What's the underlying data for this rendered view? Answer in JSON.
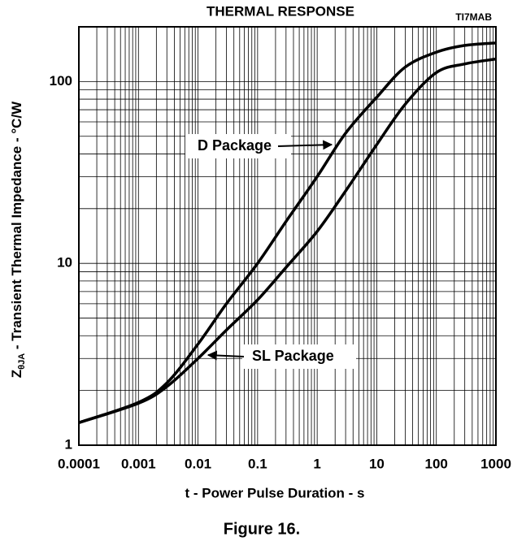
{
  "chart_data": {
    "type": "line",
    "title": "THERMAL RESPONSE",
    "code": "TI7MAB",
    "xlabel": "t - Power Pulse Duration - s",
    "ylabel": {
      "main": "Z",
      "sub": "θJA",
      "rest": " - Transient Thermal Impedance - °C/W"
    },
    "caption": "Figure 16.",
    "xlog": true,
    "ylog": true,
    "grid": true,
    "minor_grid": true,
    "xlim": [
      0.0001,
      1000
    ],
    "ylim": [
      1,
      200
    ],
    "xticks": [
      0.0001,
      0.001,
      0.01,
      0.1,
      1,
      10,
      100,
      1000
    ],
    "yticks": [
      1,
      10,
      100
    ],
    "x": [
      0.0001,
      0.001,
      0.003,
      0.01,
      0.03,
      0.1,
      0.3,
      1,
      3,
      10,
      30,
      100,
      300,
      1000
    ],
    "series": [
      {
        "name": "D Package",
        "color": "#000000",
        "values": [
          1.33,
          1.72,
          2.2,
          3.6,
          6,
          10,
          17,
          30,
          52,
          82,
          120,
          145,
          158,
          163
        ]
      },
      {
        "name": "SL Package",
        "color": "#000000",
        "values": [
          1.33,
          1.7,
          2.1,
          3.0,
          4.3,
          6.3,
          9.5,
          15,
          25,
          45,
          75,
          112,
          125,
          133
        ]
      }
    ]
  }
}
